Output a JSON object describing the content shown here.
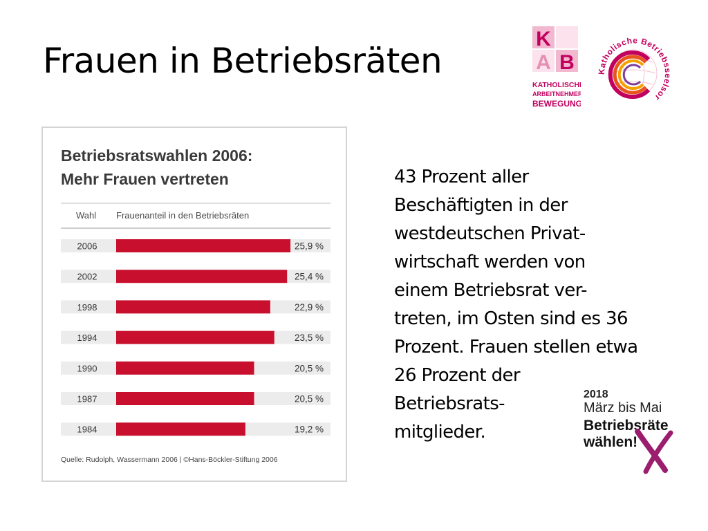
{
  "slide": {
    "title": "Frauen in Betriebsräten",
    "body_lines": [
      "43 Prozent aller",
      "Beschäftigten in der",
      "westdeutschen Privat-",
      "wirtschaft werden von",
      "einem Betriebsrat ver-",
      "treten, im Osten sind es 36",
      "Prozent. Frauen stellen etwa",
      "26 Prozent der",
      "Betriebsrats-",
      "mitglieder."
    ]
  },
  "logos": {
    "kab": {
      "letters": "KAB",
      "lines": [
        "KATHOLISCHE",
        "ARBEITNEHMER-",
        "BEWEGUNG"
      ],
      "color": "#c2005e"
    },
    "seelsorge": {
      "text": "Katholische Betriebsseelsorge",
      "color": "#c2005e"
    },
    "wahlen": {
      "year": "2018",
      "period": "März bis Mai",
      "line1": "Betriebsräte",
      "line2": "wählen!",
      "cross_color": "#9b1d6e"
    }
  },
  "chart_data": {
    "type": "bar",
    "orientation": "horizontal",
    "title_lines": [
      "Betriebsratswahlen 2006:",
      "Mehr Frauen vertreten"
    ],
    "column_headers": [
      "Wahl",
      "Frauenanteil in den Betriebsräten"
    ],
    "categories": [
      "2006",
      "2002",
      "1998",
      "1994",
      "1990",
      "1987",
      "1984"
    ],
    "values": [
      25.9,
      25.4,
      22.9,
      23.5,
      20.5,
      20.5,
      19.2
    ],
    "value_labels": [
      "25,9 %",
      "25,4 %",
      "22,9 %",
      "23,5 %",
      "20,5 %",
      "20,5 %",
      "19,2 %"
    ],
    "unit": "%",
    "source": "Quelle: Rudolph, Wassermann 2006 | ©Hans-Böckler-Stiftung 2006",
    "bar_color": "#c8102e",
    "row_color": "#ececec",
    "grid": false
  }
}
